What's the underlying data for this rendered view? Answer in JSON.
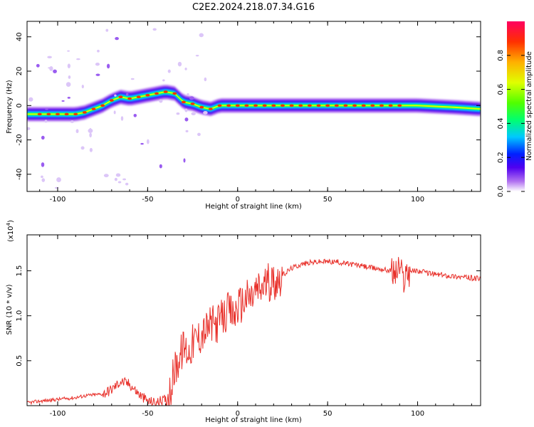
{
  "figure_title": "C2E2.2024.218.07.34.G16",
  "chart_data": [
    {
      "type": "heatmap",
      "title": "C2E2.2024.218.07.34.G16",
      "xlabel": "Height of straight line (km)",
      "ylabel": "Frequency (Hz)",
      "xlim": [
        -117,
        135
      ],
      "ylim": [
        -50,
        49
      ],
      "xticks": [
        -100,
        -50,
        0,
        50,
        100
      ],
      "yticks": [
        -40,
        -20,
        0,
        20,
        40
      ],
      "colorbar": {
        "label": "Normalized spectral amplitude",
        "range": [
          0.0,
          1.0
        ],
        "ticks": [
          0.0,
          0.2,
          0.4,
          0.6,
          0.8
        ],
        "colors": [
          "#ffffff",
          "#b070f0",
          "#5000f0",
          "#0020ff",
          "#00c8ff",
          "#00ff70",
          "#50ff00",
          "#e0ff00",
          "#ffb000",
          "#ff3000",
          "#ff0060"
        ]
      },
      "ridge": {
        "x": [
          -117,
          -110,
          -100,
          -90,
          -85,
          -80,
          -75,
          -70,
          -65,
          -60,
          -55,
          -50,
          -45,
          -40,
          -35,
          -30,
          -25,
          -20,
          -15,
          -10,
          -5,
          0,
          5,
          10,
          20,
          40,
          60,
          80,
          90,
          100,
          120,
          135
        ],
        "y": [
          -5,
          -5,
          -5,
          -5,
          -4,
          -2,
          0,
          3,
          5,
          4,
          5,
          6,
          7,
          8,
          7,
          2,
          1,
          -1,
          -2,
          0,
          0,
          0,
          0,
          0,
          0,
          0,
          0,
          0,
          0,
          0,
          -1,
          -2
        ]
      }
    },
    {
      "type": "line",
      "xlabel": "Height of straight line (km)",
      "ylabel": "SNR (10 * v/v)",
      "y_multiplier": "(x10",
      "y_multiplier_exp": "4",
      "y_multiplier_close": ")",
      "xlim": [
        -117,
        135
      ],
      "ylim": [
        0.0,
        1.9
      ],
      "xticks": [
        -100,
        -50,
        0,
        50,
        100
      ],
      "yticks": [
        0.5,
        1.0,
        1.5
      ],
      "ytick_labels": [
        "0.5",
        "1.0",
        "1.5"
      ],
      "line_color": "#e8302a",
      "series": [
        {
          "x": [
            -117,
            -110,
            -105,
            -100,
            -95,
            -90,
            -85,
            -80,
            -75,
            -70,
            -65,
            -60,
            -55,
            -50,
            -45,
            -40,
            -37,
            -35,
            -32,
            -30,
            -27,
            -25,
            -22,
            -20,
            -17,
            -15,
            -12,
            -10,
            -7,
            -5,
            -2,
            0,
            3,
            5,
            8,
            10,
            13,
            15,
            18,
            20,
            25,
            30,
            35,
            40,
            45,
            50,
            55,
            60,
            65,
            70,
            75,
            80,
            85,
            88,
            90,
            92,
            94,
            96,
            100,
            105,
            110,
            115,
            120,
            125,
            130,
            135
          ],
          "y": [
            0.03,
            0.05,
            0.06,
            0.07,
            0.08,
            0.09,
            0.11,
            0.12,
            0.13,
            0.18,
            0.27,
            0.24,
            0.13,
            0.05,
            0.03,
            0.07,
            0.2,
            0.4,
            0.55,
            0.65,
            0.6,
            0.7,
            0.75,
            0.8,
            0.85,
            0.9,
            0.9,
            0.95,
            1.0,
            1.05,
            1.0,
            1.1,
            1.15,
            1.2,
            1.2,
            1.28,
            1.3,
            1.35,
            1.38,
            1.38,
            1.45,
            1.53,
            1.57,
            1.59,
            1.6,
            1.6,
            1.6,
            1.58,
            1.57,
            1.55,
            1.53,
            1.52,
            1.5,
            1.48,
            1.55,
            1.4,
            1.5,
            1.5,
            1.5,
            1.48,
            1.46,
            1.45,
            1.44,
            1.43,
            1.42,
            1.41
          ]
        }
      ]
    }
  ]
}
